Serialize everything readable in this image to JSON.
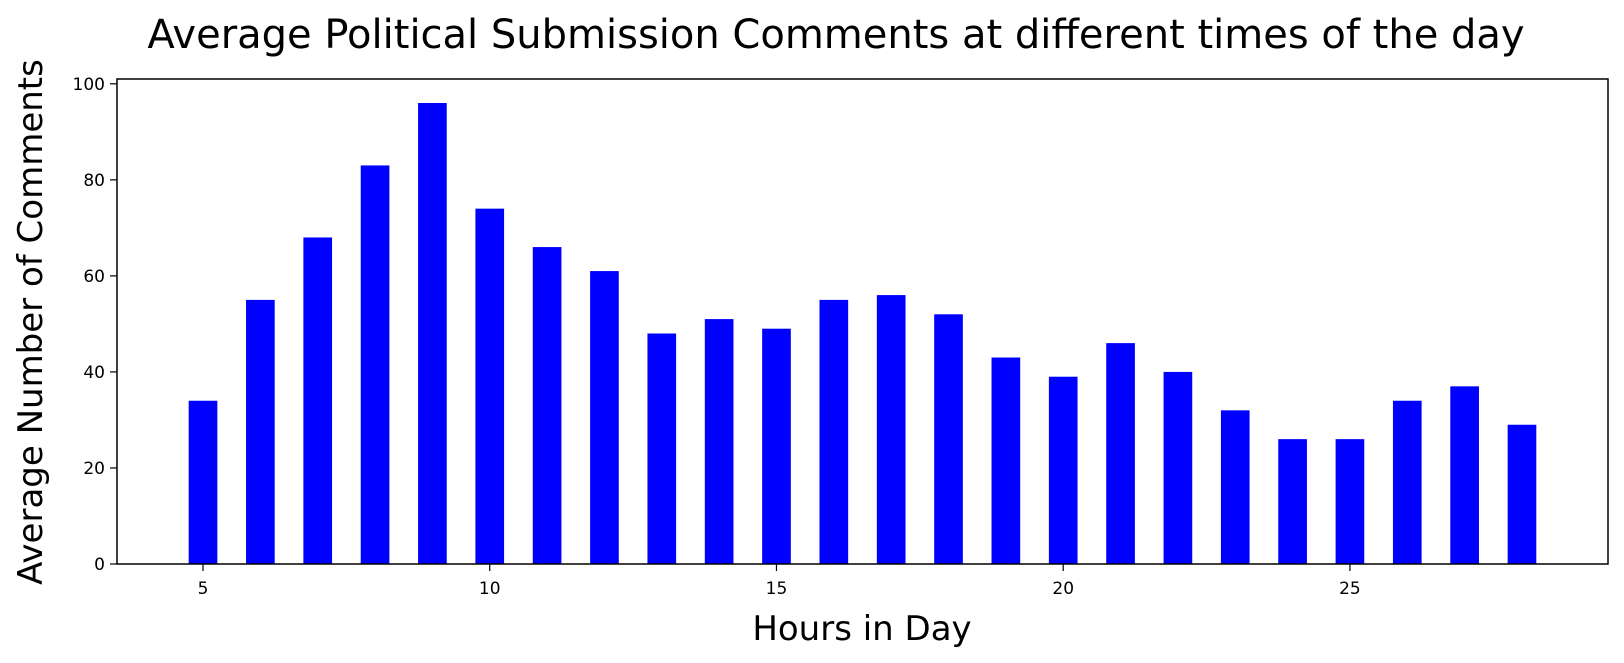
{
  "chart_data": {
    "type": "bar",
    "title": "Average Political Submission Comments at different times of the day",
    "xlabel": "Hours in Day",
    "ylabel": "Average Number of Comments",
    "x": [
      5,
      6,
      7,
      8,
      9,
      10,
      11,
      12,
      13,
      14,
      15,
      16,
      17,
      18,
      19,
      20,
      21,
      22,
      23,
      24,
      25,
      26,
      27,
      28
    ],
    "values": [
      34,
      55,
      68,
      83,
      96,
      74,
      66,
      61,
      48,
      51,
      49,
      55,
      56,
      52,
      43,
      39,
      46,
      40,
      32,
      26,
      26,
      34,
      37,
      29
    ],
    "xticks": [
      5,
      10,
      15,
      20,
      25
    ],
    "yticks": [
      0,
      20,
      40,
      60,
      80,
      100
    ],
    "xlim": [
      3.5,
      29.5
    ],
    "ylim": [
      0,
      101
    ],
    "bar_color": "#0000ff",
    "grid": false,
    "legend": "none"
  }
}
